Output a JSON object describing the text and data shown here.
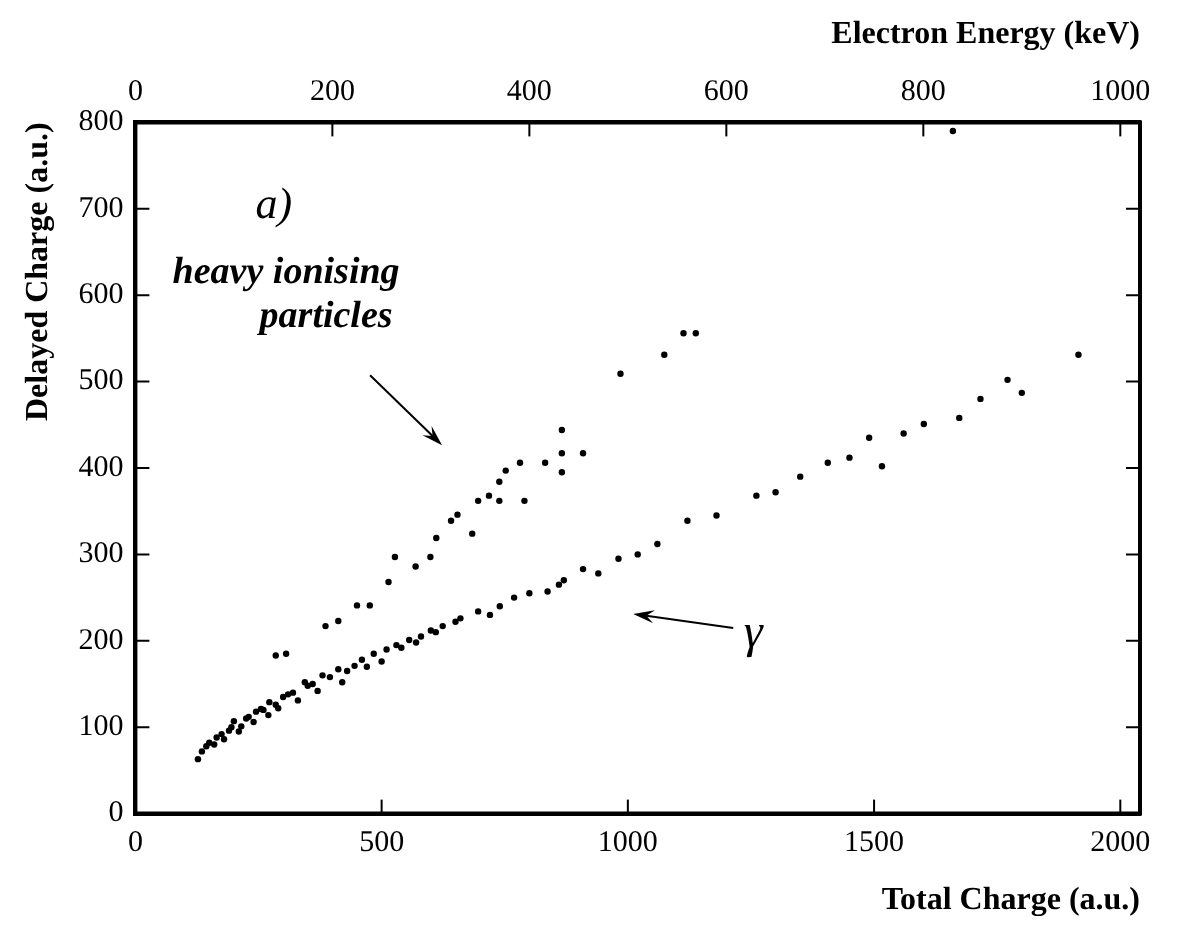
{
  "chart_data": {
    "type": "scatter",
    "xlabel": "Total Charge (a.u.)",
    "ylabel": "Delayed Charge (a.u.)",
    "x2label": "Electron Energy (keV)",
    "xlim": [
      0,
      2040
    ],
    "xticks": [
      0,
      500,
      1000,
      1500,
      2000
    ],
    "x2lim": [
      0,
      1020
    ],
    "x2ticks": [
      0,
      200,
      400,
      600,
      800,
      1000
    ],
    "ylim": [
      0,
      800
    ],
    "yticks": [
      0,
      100,
      200,
      300,
      400,
      500,
      600,
      700,
      800
    ],
    "grid": false,
    "legend": false,
    "marker": "circle",
    "annotations": [
      "a)",
      "heavy ionising particles",
      "γ"
    ],
    "series": [
      {
        "color": "#000000",
        "x": [
          135,
          150,
          165,
          180,
          195,
          210,
          225,
          240,
          255,
          270,
          290,
          310,
          330,
          350,
          370,
          395,
          420,
          445,
          470,
          500,
          540,
          570,
          610,
          660,
          740,
          860,
          127,
          144,
          160,
          175,
          190,
          200,
          215,
          230,
          245,
          260,
          272,
          285,
          300,
          320,
          344,
          360,
          380,
          412,
          430,
          460,
          484,
          510,
          530,
          556,
          580,
          600,
          624,
          650,
          696,
          720,
          769,
          800,
          837,
          870,
          909,
          940,
          981,
          1020,
          1060,
          1121,
          1180,
          1261,
          1300,
          1350,
          1406,
          1450,
          1490,
          1516,
          1560,
          1601,
          1673,
          1716,
          1771,
          1800,
          1915
        ],
        "values": [
          72,
          82,
          88,
          86,
          100,
          95,
          110,
          106,
          121,
          114,
          122,
          138,
          131,
          148,
          142,
          158,
          152,
          171,
          170,
          176,
          192,
          198,
          210,
          226,
          240,
          265,
          63,
          78,
          80,
          92,
          96,
          107,
          101,
          112,
          118,
          120,
          129,
          126,
          135,
          140,
          152,
          150,
          160,
          167,
          165,
          178,
          185,
          190,
          195,
          201,
          205,
          212,
          217,
          222,
          234,
          230,
          250,
          255,
          257,
          270,
          283,
          278,
          295,
          300,
          312,
          339,
          345,
          368,
          372,
          390,
          406,
          412,
          435,
          402,
          440,
          451,
          458,
          480,
          502,
          487,
          531
        ]
      },
      {
        "color": "#000000",
        "x": [
          285,
          306,
          386,
          412,
          450,
          476,
          514,
          527,
          569,
          599,
          611,
          641,
          654,
          684,
          696,
          718,
          739,
          739,
          752,
          781,
          790,
          832,
          866,
          866,
          866,
          909,
          985,
          1074,
          1113,
          1138,
          1660
        ],
        "values": [
          183,
          185,
          217,
          223,
          241,
          241,
          268,
          297,
          286,
          297,
          319,
          339,
          346,
          324,
          362,
          368,
          384,
          362,
          397,
          406,
          362,
          406,
          417,
          395,
          444,
          417,
          509,
          531,
          556,
          556,
          790
        ]
      }
    ]
  }
}
